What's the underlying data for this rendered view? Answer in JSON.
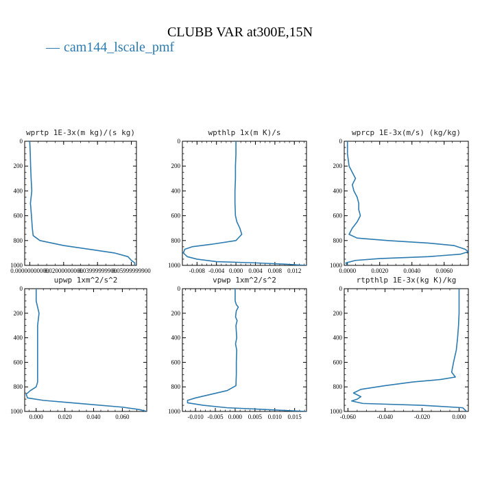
{
  "figure": {
    "title": "CLUBB VAR at300E,15N",
    "legend": [
      {
        "name": "cam144_lscale_pmf",
        "color": "#2a7ab0"
      }
    ]
  },
  "chart_data": [
    {
      "type": "line",
      "title": "wprtp  1E-3x(m kg)/(s kg)",
      "xlim": [
        -0.003,
        0.063
      ],
      "ylim": [
        1000,
        0
      ],
      "yticks": [
        0,
        200,
        400,
        600,
        800,
        1000
      ],
      "xticks": [
        0.0,
        0.02,
        0.04,
        0.06
      ],
      "xtick_labels": [
        "0.00000000000",
        "0.02000000000",
        "0.03999999900",
        "0.05999999900"
      ],
      "series": [
        {
          "color": "#2a7ab0",
          "points": [
            [
              0.0,
              0
            ],
            [
              0.0003,
              100
            ],
            [
              0.0005,
              200
            ],
            [
              0.0008,
              300
            ],
            [
              0.0012,
              400
            ],
            [
              0.0008,
              450
            ],
            [
              0.0004,
              500
            ],
            [
              0.001,
              600
            ],
            [
              0.0015,
              700
            ],
            [
              0.002,
              760
            ],
            [
              0.006,
              800
            ],
            [
              0.02,
              840
            ],
            [
              0.035,
              870
            ],
            [
              0.05,
              900
            ],
            [
              0.058,
              930
            ],
            [
              0.06,
              960
            ],
            [
              0.062,
              980
            ],
            [
              0.062,
              1000
            ]
          ]
        }
      ]
    },
    {
      "type": "line",
      "title": "wpthlp  1x(m K)/s",
      "xlim": [
        -0.011,
        0.0145
      ],
      "ylim": [
        1000,
        0
      ],
      "yticks": [
        0,
        200,
        400,
        600,
        800,
        1000
      ],
      "xticks": [
        -0.008,
        -0.004,
        0.0,
        0.004,
        0.008,
        0.012
      ],
      "xtick_labels": [
        "-0.008",
        "-0.004",
        "0.000",
        "0.004",
        "0.008",
        "0.012"
      ],
      "series": [
        {
          "color": "#2a7ab0",
          "points": [
            [
              0.0,
              0
            ],
            [
              0.0,
              100
            ],
            [
              -0.0001,
              200
            ],
            [
              -0.0001,
              300
            ],
            [
              -0.0002,
              400
            ],
            [
              -0.0002,
              500
            ],
            [
              -0.0001,
              600
            ],
            [
              0.0002,
              650
            ],
            [
              0.0008,
              700
            ],
            [
              0.0012,
              750
            ],
            [
              0.0,
              800
            ],
            [
              -0.005,
              830
            ],
            [
              -0.009,
              850
            ],
            [
              -0.0105,
              870
            ],
            [
              -0.0108,
              900
            ],
            [
              -0.01,
              930
            ],
            [
              -0.008,
              950
            ],
            [
              -0.004,
              970
            ],
            [
              0.004,
              980
            ],
            [
              0.01,
              990
            ],
            [
              0.0145,
              1000
            ]
          ]
        }
      ]
    },
    {
      "type": "line",
      "title": "wprcp  1E-3x(m/s) (kg/kg)",
      "xlim": [
        -0.0002,
        0.0075
      ],
      "ylim": [
        1000,
        0
      ],
      "yticks": [
        0,
        200,
        400,
        600,
        800,
        1000
      ],
      "xticks": [
        0.0,
        0.002,
        0.004,
        0.006
      ],
      "xtick_labels": [
        "0.0000",
        "0.0020",
        "0.0040",
        "0.0060"
      ],
      "series": [
        {
          "color": "#2a7ab0",
          "points": [
            [
              0.0,
              0
            ],
            [
              0.0,
              100
            ],
            [
              0.0001,
              200
            ],
            [
              0.0003,
              250
            ],
            [
              0.0005,
              300
            ],
            [
              0.0003,
              350
            ],
            [
              0.0004,
              400
            ],
            [
              0.0006,
              450
            ],
            [
              0.0007,
              500
            ],
            [
              0.0007,
              550
            ],
            [
              0.0008,
              600
            ],
            [
              0.0006,
              650
            ],
            [
              0.0003,
              700
            ],
            [
              0.0001,
              750
            ],
            [
              0.0006,
              780
            ],
            [
              0.0025,
              800
            ],
            [
              0.005,
              820
            ],
            [
              0.0066,
              840
            ],
            [
              0.0073,
              870
            ],
            [
              0.0075,
              890
            ],
            [
              0.007,
              910
            ],
            [
              0.005,
              930
            ],
            [
              0.002,
              945
            ],
            [
              0.0005,
              960
            ],
            [
              -0.0001,
              980
            ],
            [
              0.0,
              1000
            ]
          ]
        }
      ]
    },
    {
      "type": "line",
      "title": "upwp  1xm^2/s^2",
      "xlim": [
        -0.008,
        0.077
      ],
      "ylim": [
        1000,
        0
      ],
      "yticks": [
        0,
        200,
        400,
        600,
        800,
        1000
      ],
      "xticks": [
        0.0,
        0.02,
        0.04,
        0.06
      ],
      "xtick_labels": [
        "0.000",
        "0.020",
        "0.040",
        "0.060"
      ],
      "series": [
        {
          "color": "#2a7ab0",
          "points": [
            [
              0.0,
              0
            ],
            [
              0.0,
              100
            ],
            [
              0.002,
              200
            ],
            [
              0.001,
              300
            ],
            [
              0.001,
              400
            ],
            [
              0.001,
              500
            ],
            [
              0.001,
              600
            ],
            [
              0.001,
              700
            ],
            [
              0.001,
              760
            ],
            [
              0.0,
              800
            ],
            [
              -0.004,
              830
            ],
            [
              -0.007,
              860
            ],
            [
              -0.006,
              890
            ],
            [
              0.005,
              910
            ],
            [
              0.02,
              925
            ],
            [
              0.04,
              945
            ],
            [
              0.06,
              965
            ],
            [
              0.072,
              985
            ],
            [
              0.077,
              1000
            ]
          ]
        }
      ]
    },
    {
      "type": "line",
      "title": "vpwp  1xm^2/s^2",
      "xlim": [
        -0.0133,
        0.018
      ],
      "ylim": [
        1000,
        0
      ],
      "yticks": [
        0,
        200,
        400,
        600,
        800,
        1000
      ],
      "xticks": [
        -0.01,
        -0.005,
        0.0,
        0.005,
        0.01,
        0.015
      ],
      "xtick_labels": [
        "-0.010",
        "-0.005",
        "0.000",
        "0.005",
        "0.010",
        "0.015"
      ],
      "series": [
        {
          "color": "#2a7ab0",
          "points": [
            [
              0.0,
              0
            ],
            [
              0.0,
              100
            ],
            [
              0.0003,
              130
            ],
            [
              0.0008,
              150
            ],
            [
              0.0003,
              180
            ],
            [
              0.0001,
              230
            ],
            [
              0.0005,
              260
            ],
            [
              0.0002,
              300
            ],
            [
              0.0004,
              400
            ],
            [
              0.0001,
              450
            ],
            [
              0.0004,
              500
            ],
            [
              0.0003,
              600
            ],
            [
              0.0003,
              700
            ],
            [
              0.0002,
              790
            ],
            [
              -0.002,
              830
            ],
            [
              -0.006,
              860
            ],
            [
              -0.01,
              890
            ],
            [
              -0.012,
              910
            ],
            [
              -0.012,
              930
            ],
            [
              -0.008,
              950
            ],
            [
              -0.002,
              970
            ],
            [
              0.008,
              985
            ],
            [
              0.018,
              1000
            ]
          ]
        }
      ]
    },
    {
      "type": "line",
      "title": "rtpthlp  1E-3x(kg K)/kg",
      "xlim": [
        -0.062,
        0.005
      ],
      "ylim": [
        1000,
        0
      ],
      "yticks": [
        0,
        200,
        400,
        600,
        800,
        1000
      ],
      "xticks": [
        -0.06,
        -0.04,
        -0.02,
        0.0
      ],
      "xtick_labels": [
        "-0.060",
        "-0.040",
        "-0.020",
        "0.000"
      ],
      "series": [
        {
          "color": "#2a7ab0",
          "points": [
            [
              0.0,
              0
            ],
            [
              0.0,
              100
            ],
            [
              0.0,
              200
            ],
            [
              -0.0003,
              300
            ],
            [
              -0.0008,
              400
            ],
            [
              -0.0015,
              500
            ],
            [
              -0.003,
              600
            ],
            [
              -0.004,
              680
            ],
            [
              -0.002,
              720
            ],
            [
              -0.01,
              740
            ],
            [
              -0.025,
              760
            ],
            [
              -0.04,
              790
            ],
            [
              -0.053,
              820
            ],
            [
              -0.057,
              850
            ],
            [
              -0.053,
              880
            ],
            [
              -0.055,
              900
            ],
            [
              -0.058,
              915
            ],
            [
              -0.052,
              935
            ],
            [
              -0.02,
              950
            ],
            [
              0.002,
              970
            ],
            [
              0.004,
              1000
            ]
          ]
        }
      ]
    }
  ]
}
